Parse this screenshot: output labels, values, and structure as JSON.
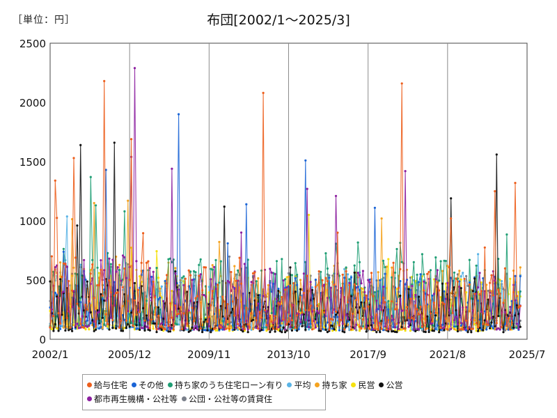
{
  "unit_label": "［単位：円］",
  "chart_data": {
    "type": "line",
    "title": "布団[2002/1～2025/3]",
    "xlabel": "",
    "ylabel": "",
    "x_start": "2002/1",
    "x_end": "2025/7",
    "x_ticks": [
      "2002/1",
      "2005/12",
      "2009/11",
      "2013/10",
      "2017/9",
      "2021/8",
      "2025/7"
    ],
    "ylim": [
      0,
      2500
    ],
    "y_ticks": [
      0,
      500,
      1000,
      1500,
      2000,
      2500
    ],
    "grid": "vertical",
    "legend_position": "bottom",
    "series": [
      {
        "name": "給与住宅",
        "color": "#ed5e1c",
        "peaks": [
          {
            "x": "2002/4",
            "y": 1340
          },
          {
            "x": "2003/3",
            "y": 1530
          },
          {
            "x": "2006/1",
            "y": 1690
          },
          {
            "x": "2012/7",
            "y": 2080
          },
          {
            "x": "2021/10",
            "y": 1020
          },
          {
            "x": "2023/12",
            "y": 1250
          },
          {
            "x": "2024/12",
            "y": 1320
          }
        ]
      },
      {
        "name": "その他",
        "color": "#1a64d6",
        "peaks": [
          {
            "x": "2004/10",
            "y": 1430
          },
          {
            "x": "2008/5",
            "y": 1900
          },
          {
            "x": "2011/9",
            "y": 1140
          },
          {
            "x": "2014/8",
            "y": 1510
          },
          {
            "x": "2018/1",
            "y": 1110
          }
        ]
      },
      {
        "name": "持ち家のうち住宅ローン有り",
        "color": "#1f9e74",
        "peaks": [
          {
            "x": "2004/1",
            "y": 1370
          },
          {
            "x": "2005/9",
            "y": 1080
          }
        ]
      },
      {
        "name": "平均",
        "color": "#5ab4e6",
        "peaks": []
      },
      {
        "name": "持ち家",
        "color": "#f5a31f",
        "peaks": [
          {
            "x": "2004/3",
            "y": 1150
          },
          {
            "x": "2005/11",
            "y": 1170
          },
          {
            "x": "2018/5",
            "y": 1020
          }
        ]
      },
      {
        "name": "民営",
        "color": "#f5e10f",
        "peaks": [
          {
            "x": "2014/10",
            "y": 1050
          }
        ]
      },
      {
        "name": "公営",
        "color": "#111111",
        "peaks": [
          {
            "x": "2003/7",
            "y": 1640
          },
          {
            "x": "2005/3",
            "y": 1660
          },
          {
            "x": "2010/8",
            "y": 1120
          },
          {
            "x": "2021/10",
            "y": 1190
          },
          {
            "x": "2024/1",
            "y": 1560
          }
        ]
      },
      {
        "name": "都市再生機構・公社等",
        "color": "#8c1fa0",
        "peaks": [
          {
            "x": "2006/3",
            "y": 2290
          },
          {
            "x": "2006/1",
            "y": 1540
          },
          {
            "x": "2008/1",
            "y": 1440
          },
          {
            "x": "2014/9",
            "y": 1270
          },
          {
            "x": "2016/2",
            "y": 1210
          },
          {
            "x": "2019/7",
            "y": 1420
          }
        ]
      },
      {
        "name": "公団・公社等の賃貸住",
        "color": "#7a7f8a",
        "peaks": []
      }
    ],
    "other_peaks": [
      {
        "series": "給与住宅",
        "x": "2004/9",
        "y": 2180
      },
      {
        "series": "給与住宅",
        "x": "2019/5",
        "y": 2160
      }
    ]
  }
}
